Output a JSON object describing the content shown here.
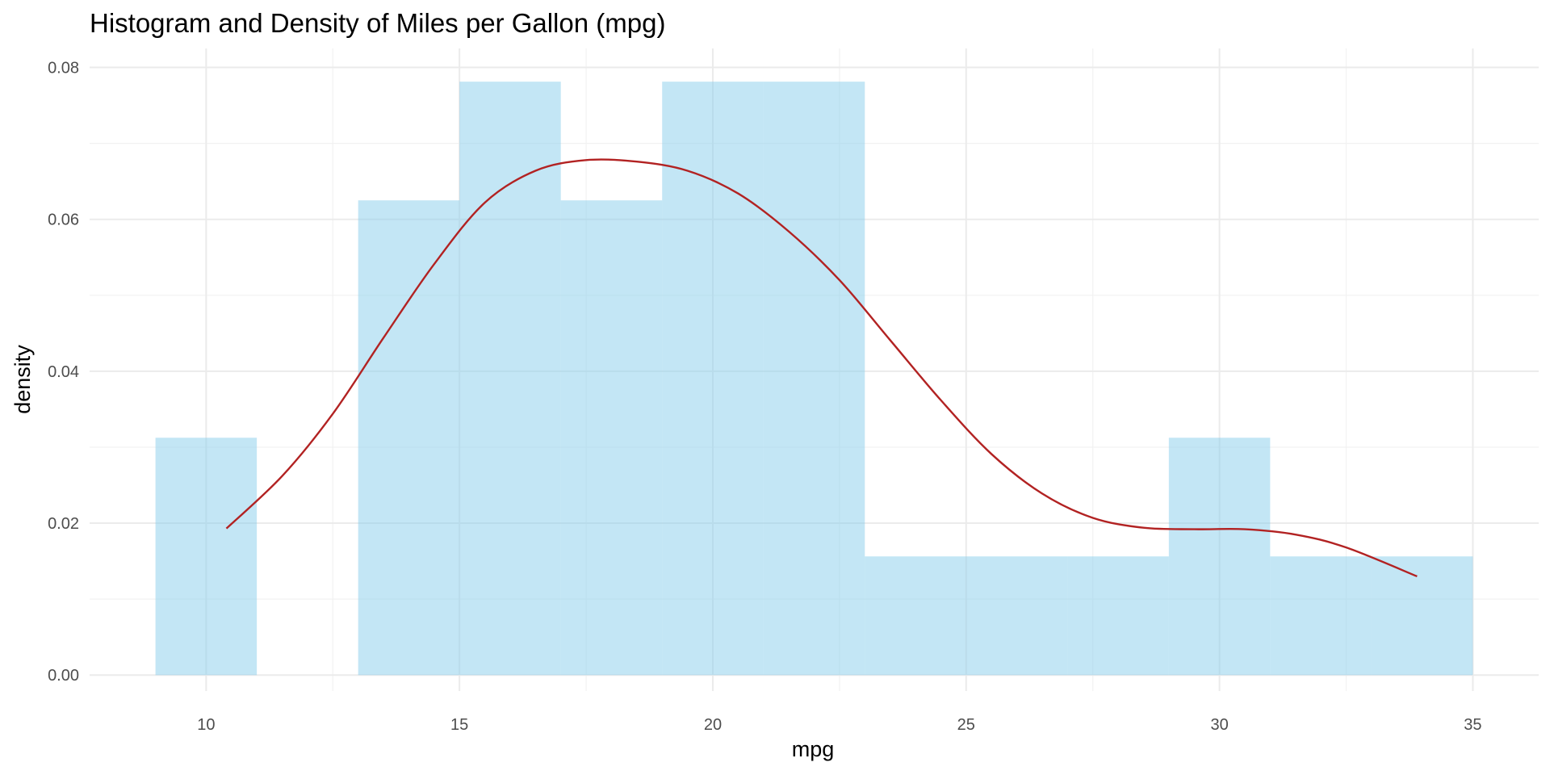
{
  "chart_data": {
    "type": "histogram",
    "title": "Histogram and Density of Miles per Gallon (mpg)",
    "xlabel": "mpg",
    "ylabel": "density",
    "xlim": [
      7.7,
      36.3
    ],
    "ylim": [
      -0.0021,
      0.0825
    ],
    "x_ticks": [
      10,
      15,
      20,
      25,
      30,
      35
    ],
    "y_ticks": [
      0.0,
      0.02,
      0.04,
      0.06,
      0.08
    ],
    "y_tick_labels": [
      "0.00",
      "0.02",
      "0.04",
      "0.06",
      "0.08"
    ],
    "grid": true,
    "bins": [
      {
        "x0": 9,
        "x1": 11,
        "density": 0.03125
      },
      {
        "x0": 11,
        "x1": 13,
        "density": 0.0
      },
      {
        "x0": 13,
        "x1": 15,
        "density": 0.0625
      },
      {
        "x0": 15,
        "x1": 17,
        "density": 0.078125
      },
      {
        "x0": 17,
        "x1": 19,
        "density": 0.0625
      },
      {
        "x0": 19,
        "x1": 21,
        "density": 0.078125
      },
      {
        "x0": 21,
        "x1": 23,
        "density": 0.078125
      },
      {
        "x0": 23,
        "x1": 25,
        "density": 0.015625
      },
      {
        "x0": 25,
        "x1": 27,
        "density": 0.015625
      },
      {
        "x0": 27,
        "x1": 29,
        "density": 0.015625
      },
      {
        "x0": 29,
        "x1": 31,
        "density": 0.03125
      },
      {
        "x0": 31,
        "x1": 33,
        "density": 0.015625
      },
      {
        "x0": 33,
        "x1": 35,
        "density": 0.015625
      }
    ],
    "density_curve": {
      "x": [
        10.4,
        11.5,
        12.5,
        13.5,
        14.5,
        15.5,
        16.5,
        17.5,
        18.5,
        19.5,
        20.5,
        21.5,
        22.5,
        23.5,
        24.5,
        25.5,
        26.5,
        27.5,
        28.5,
        29.5,
        30.5,
        31.5,
        32.5,
        33.9
      ],
      "y": [
        0.0193,
        0.0262,
        0.0344,
        0.0444,
        0.0541,
        0.0622,
        0.0664,
        0.0678,
        0.0676,
        0.0664,
        0.0634,
        0.0584,
        0.052,
        0.0441,
        0.0362,
        0.0291,
        0.0239,
        0.0207,
        0.0194,
        0.0192,
        0.0192,
        0.0185,
        0.0168,
        0.013
      ]
    },
    "colors": {
      "bar_fill": "#87ceeb",
      "bar_opacity": 0.5,
      "density_line": "#b22222"
    }
  }
}
